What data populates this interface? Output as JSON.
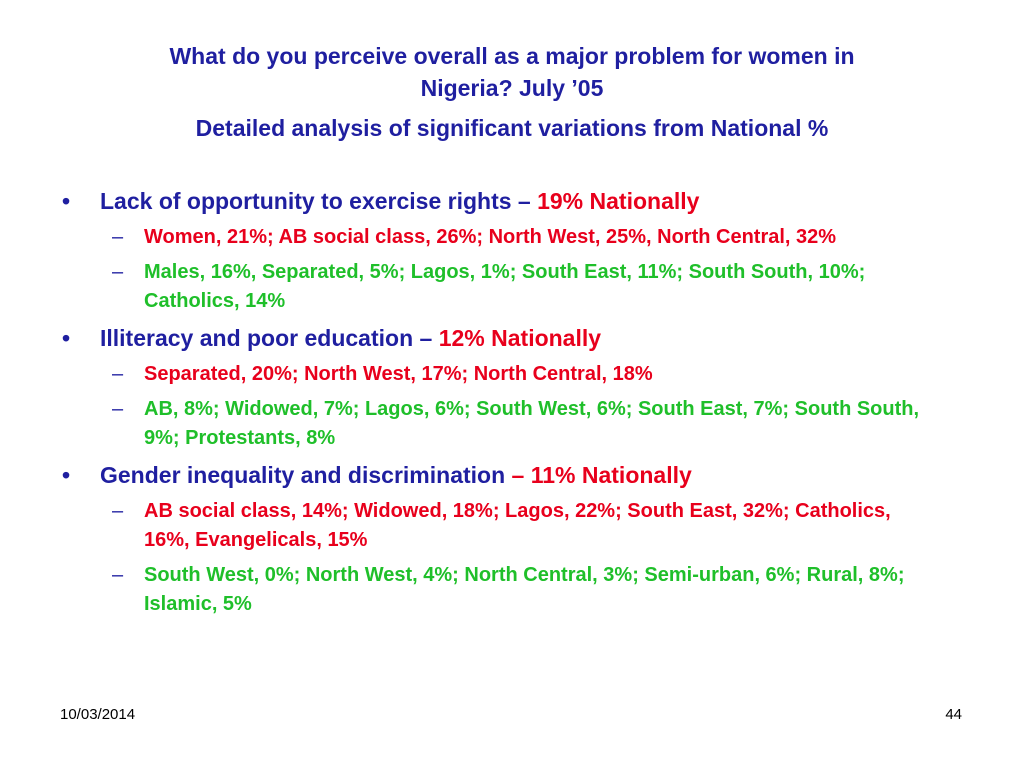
{
  "title": {
    "line1": "What do you perceive overall as a major problem for women in",
    "line2": "Nigeria? July ’05",
    "subtitle": "Detailed analysis of significant variations from National %"
  },
  "colors": {
    "title": "#1f1fa0",
    "accent": "#e8001c",
    "positive": "#1fbf2a"
  },
  "bullets": [
    {
      "label": "Lack of opportunity to exercise rights – ",
      "accent": "19% Nationally",
      "subs": [
        {
          "color": "red",
          "text": "Women, 21%; AB social class, 26%; North West, 25%, North Central, 32%"
        },
        {
          "color": "green",
          "text": "Males, 16%, Separated, 5%; Lagos, 1%; South East, 11%; South South, 10%; Catholics, 14%"
        }
      ]
    },
    {
      "label": "Illiteracy and poor education – ",
      "accent": "12% Nationally",
      "subs": [
        {
          "color": "red",
          "text": "Separated, 20%; North West, 17%; North Central, 18%"
        },
        {
          "color": "green",
          "text": "AB, 8%; Widowed, 7%; Lagos, 6%; South West, 6%; South East, 7%; South South, 9%; Protestants, 8%"
        }
      ]
    },
    {
      "label": "Gender inequality and discrimination ",
      "accent": "– 11% Nationally",
      "subs": [
        {
          "color": "red",
          "text": "AB social class, 14%; Widowed, 18%; Lagos, 22%; South East, 32%; Catholics, 16%, Evangelicals, 15%"
        },
        {
          "color": "green",
          "text": " South West, 0%; North West, 4%; North Central, 3%; Semi-urban, 6%; Rural, 8%; Islamic, 5%"
        }
      ]
    }
  ],
  "bullet_glyph": "•",
  "sub_glyph": "–",
  "footer": {
    "date": "10/03/2014",
    "page": "44"
  }
}
